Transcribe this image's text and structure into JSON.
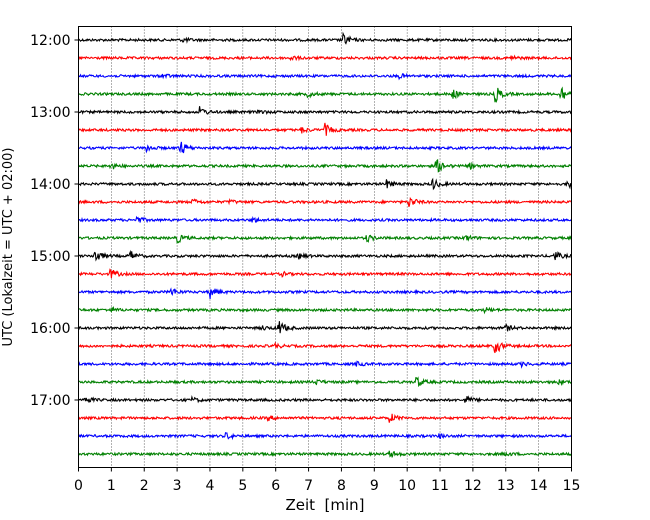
{
  "chart_data": {
    "type": "line",
    "title": "",
    "xlabel": "Zeit  [min]",
    "ylabel": "UTC (Lokalzeit = UTC + 02:00)",
    "xlim": [
      0,
      15
    ],
    "x_ticks": [
      0,
      1,
      2,
      3,
      4,
      5,
      6,
      7,
      8,
      9,
      10,
      11,
      12,
      13,
      14,
      15
    ],
    "y_tick_labels": [
      "12:00",
      "13:00",
      "14:00",
      "15:00",
      "16:00",
      "17:00"
    ],
    "y_tick_rows": [
      0,
      4,
      8,
      12,
      16,
      20
    ],
    "grid": "vertical dotted",
    "row_interval_min": 15,
    "trace_colors": [
      "#000000",
      "#ff0000",
      "#0000ff",
      "#008000"
    ],
    "traces": [
      {
        "start": "12:00",
        "color": "#000000",
        "events": [
          {
            "t": 8.1,
            "amp": 0.9
          },
          {
            "t": 3.2,
            "amp": 0.3
          }
        ]
      },
      {
        "start": "12:15",
        "color": "#ff0000",
        "events": [
          {
            "t": 6.5,
            "amp": 0.3
          },
          {
            "t": 13.2,
            "amp": 0.3
          }
        ]
      },
      {
        "start": "12:30",
        "color": "#0000ff",
        "events": [
          {
            "t": 2.6,
            "amp": 0.3
          },
          {
            "t": 9.8,
            "amp": 0.3
          }
        ]
      },
      {
        "start": "12:45",
        "color": "#008000",
        "events": [
          {
            "t": 11.4,
            "amp": 0.7
          },
          {
            "t": 12.7,
            "amp": 1.3
          },
          {
            "t": 14.7,
            "amp": 1.3
          },
          {
            "t": 7.0,
            "amp": 0.4
          }
        ]
      },
      {
        "start": "13:00",
        "color": "#000000",
        "events": [
          {
            "t": 3.7,
            "amp": 0.8
          },
          {
            "t": 5.5,
            "amp": 0.3
          }
        ]
      },
      {
        "start": "13:15",
        "color": "#ff0000",
        "events": [
          {
            "t": 7.5,
            "amp": 1.0
          },
          {
            "t": 6.8,
            "amp": 0.4
          }
        ]
      },
      {
        "start": "13:30",
        "color": "#0000ff",
        "events": [
          {
            "t": 3.1,
            "amp": 1.3
          },
          {
            "t": 2.1,
            "amp": 0.5
          }
        ]
      },
      {
        "start": "13:45",
        "color": "#008000",
        "events": [
          {
            "t": 10.9,
            "amp": 1.2
          },
          {
            "t": 1.0,
            "amp": 0.5
          },
          {
            "t": 11.9,
            "amp": 0.4
          }
        ]
      },
      {
        "start": "14:00",
        "color": "#000000",
        "events": [
          {
            "t": 10.8,
            "amp": 0.8
          },
          {
            "t": 9.4,
            "amp": 0.6
          },
          {
            "t": 14.9,
            "amp": 0.6
          }
        ]
      },
      {
        "start": "14:15",
        "color": "#ff0000",
        "events": [
          {
            "t": 3.5,
            "amp": 0.4
          },
          {
            "t": 10.1,
            "amp": 0.8
          },
          {
            "t": 4.6,
            "amp": 0.3
          }
        ]
      },
      {
        "start": "14:30",
        "color": "#0000ff",
        "events": [
          {
            "t": 1.8,
            "amp": 0.5
          },
          {
            "t": 5.3,
            "amp": 0.4
          }
        ]
      },
      {
        "start": "14:45",
        "color": "#008000",
        "events": [
          {
            "t": 3.0,
            "amp": 0.8
          },
          {
            "t": 8.8,
            "amp": 0.5
          },
          {
            "t": 11.8,
            "amp": 0.4
          }
        ]
      },
      {
        "start": "15:00",
        "color": "#000000",
        "events": [
          {
            "t": 0.5,
            "amp": 1.3
          },
          {
            "t": 1.6,
            "amp": 0.7
          },
          {
            "t": 14.5,
            "amp": 0.7
          },
          {
            "t": 6.7,
            "amp": 0.4
          }
        ]
      },
      {
        "start": "15:15",
        "color": "#ff0000",
        "events": [
          {
            "t": 1.0,
            "amp": 0.7
          },
          {
            "t": 6.2,
            "amp": 0.3
          }
        ]
      },
      {
        "start": "15:30",
        "color": "#0000ff",
        "events": [
          {
            "t": 4.0,
            "amp": 1.0
          },
          {
            "t": 2.8,
            "amp": 0.7
          }
        ]
      },
      {
        "start": "15:45",
        "color": "#008000",
        "events": [
          {
            "t": 12.4,
            "amp": 0.3
          },
          {
            "t": 1.0,
            "amp": 0.3
          }
        ]
      },
      {
        "start": "16:00",
        "color": "#000000",
        "events": [
          {
            "t": 6.1,
            "amp": 1.2
          },
          {
            "t": 13.0,
            "amp": 0.5
          },
          {
            "t": 5.6,
            "amp": 0.3
          }
        ]
      },
      {
        "start": "16:15",
        "color": "#ff0000",
        "events": [
          {
            "t": 12.7,
            "amp": 1.2
          },
          {
            "t": 6.0,
            "amp": 0.3
          }
        ]
      },
      {
        "start": "16:30",
        "color": "#0000ff",
        "events": [
          {
            "t": 8.5,
            "amp": 0.3
          },
          {
            "t": 13.5,
            "amp": 0.3
          }
        ]
      },
      {
        "start": "16:45",
        "color": "#008000",
        "events": [
          {
            "t": 10.3,
            "amp": 0.8
          },
          {
            "t": 7.2,
            "amp": 0.4
          },
          {
            "t": 14.6,
            "amp": 0.3
          }
        ]
      },
      {
        "start": "17:00",
        "color": "#000000",
        "events": [
          {
            "t": 0.2,
            "amp": 0.6
          },
          {
            "t": 11.8,
            "amp": 0.6
          },
          {
            "t": 3.5,
            "amp": 0.3
          }
        ]
      },
      {
        "start": "17:15",
        "color": "#ff0000",
        "events": [
          {
            "t": 9.5,
            "amp": 0.7
          },
          {
            "t": 5.8,
            "amp": 0.3
          }
        ]
      },
      {
        "start": "17:30",
        "color": "#0000ff",
        "events": [
          {
            "t": 4.5,
            "amp": 0.5
          },
          {
            "t": 11.0,
            "amp": 0.3
          }
        ]
      },
      {
        "start": "17:45",
        "color": "#008000",
        "events": [
          {
            "t": 9.5,
            "amp": 0.5
          },
          {
            "t": 13.0,
            "amp": 0.3
          }
        ]
      }
    ]
  }
}
